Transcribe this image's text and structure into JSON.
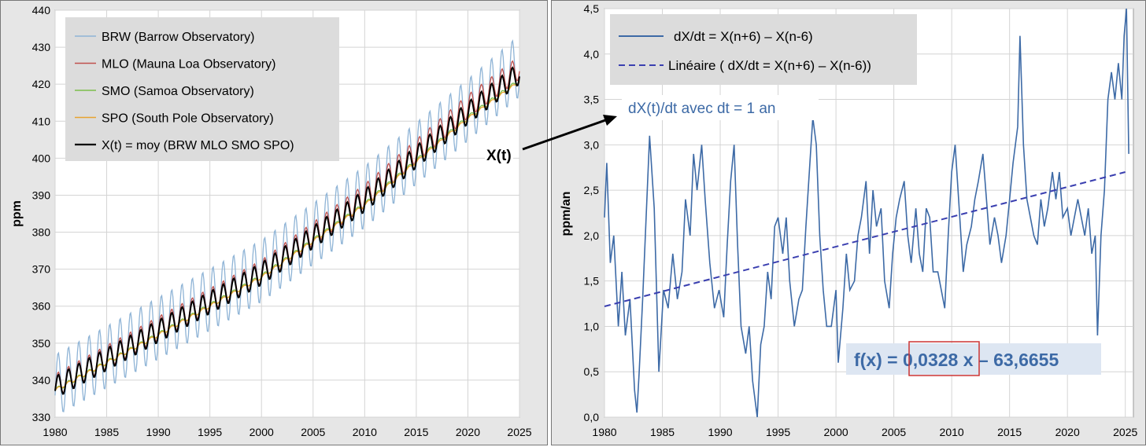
{
  "chart_data": [
    {
      "type": "line",
      "title": "",
      "xlabel": "",
      "ylabel": "ppm",
      "xlim": [
        1980,
        2025
      ],
      "ylim": [
        330,
        440
      ],
      "xticks": [
        "1980",
        "1985",
        "1990",
        "1995",
        "2000",
        "2005",
        "2010",
        "2015",
        "2020",
        "2025"
      ],
      "yticks": [
        "330",
        "340",
        "350",
        "360",
        "370",
        "380",
        "390",
        "400",
        "410",
        "420",
        "430",
        "440"
      ],
      "grid": true,
      "legend_position": "top-left",
      "series": [
        {
          "name": "BRW (Barrow Observatory)",
          "color": "#8fb4d6",
          "trend": [
            [
              1980,
              338.5
            ],
            [
              1990,
              354
            ],
            [
              2000,
              369.5
            ],
            [
              2010,
              389.5
            ],
            [
              2020,
              413
            ],
            [
              2025,
              425
            ]
          ],
          "seasonal_amplitude": 8.5
        },
        {
          "name": "MLO (Mauna Loa Observatory)",
          "color": "#c0504d",
          "trend": [
            [
              1980,
              338.5
            ],
            [
              1990,
              354
            ],
            [
              2000,
              369.3
            ],
            [
              2010,
              389.8
            ],
            [
              2020,
              414
            ],
            [
              2025,
              424.5
            ]
          ],
          "seasonal_amplitude": 3.2
        },
        {
          "name": "SMO (Samoa Observatory)",
          "color": "#7dbf4b",
          "trend": [
            [
              1980,
              337.3
            ],
            [
              1990,
              352.3
            ],
            [
              2000,
              368
            ],
            [
              2010,
              387.5
            ],
            [
              2020,
              411
            ],
            [
              2025,
              421
            ]
          ],
          "seasonal_amplitude": 0.6
        },
        {
          "name": "SPO (South Pole Observatory)",
          "color": "#e8a330",
          "trend": [
            [
              1980,
              337.3
            ],
            [
              1990,
              352.2
            ],
            [
              2000,
              367.8
            ],
            [
              2010,
              387.3
            ],
            [
              2020,
              410.7
            ],
            [
              2025,
              420.7
            ]
          ],
          "seasonal_amplitude": 0.4
        },
        {
          "name": "X(t) = moy (BRW MLO SMO SPO)",
          "color": "#000000",
          "trend": [
            [
              1980,
              338
            ],
            [
              1990,
              353.2
            ],
            [
              2000,
              368.7
            ],
            [
              2010,
              388.5
            ],
            [
              2020,
              412.2
            ],
            [
              2025,
              423
            ]
          ],
          "seasonal_amplitude": 3.0
        }
      ]
    },
    {
      "type": "line",
      "title": "",
      "xlabel": "",
      "ylabel": "ppm/an",
      "xlim": [
        1980,
        2025.7
      ],
      "ylim": [
        0.0,
        4.5
      ],
      "xticks": [
        "1980",
        "1985",
        "1990",
        "1995",
        "2000",
        "2005",
        "2010",
        "2015",
        "2020",
        "2025"
      ],
      "yticks": [
        "0,0",
        "0,5",
        "1,0",
        "1,5",
        "2,0",
        "2,5",
        "3,0",
        "3,5",
        "4,0",
        "4,5"
      ],
      "grid": true,
      "legend_position": "top-left",
      "series": [
        {
          "name": "dX/dt =  X(n+6) – X(n-6)",
          "color": "#3d6aa6",
          "style": "solid",
          "points": [
            [
              1980,
              2.2
            ],
            [
              1980.2,
              2.8
            ],
            [
              1980.5,
              1.7
            ],
            [
              1980.8,
              2.0
            ],
            [
              1981.2,
              1.0
            ],
            [
              1981.5,
              1.6
            ],
            [
              1981.8,
              0.9
            ],
            [
              1982.2,
              1.3
            ],
            [
              1982.6,
              0.3
            ],
            [
              1982.8,
              0.05
            ],
            [
              1983.0,
              0.5
            ],
            [
              1983.3,
              1.3
            ],
            [
              1983.6,
              2.2
            ],
            [
              1983.9,
              3.1
            ],
            [
              1984.3,
              2.3
            ],
            [
              1984.7,
              0.5
            ],
            [
              1985.1,
              1.4
            ],
            [
              1985.5,
              1.2
            ],
            [
              1985.9,
              1.8
            ],
            [
              1986.3,
              1.3
            ],
            [
              1986.7,
              1.6
            ],
            [
              1987.0,
              2.4
            ],
            [
              1987.4,
              2.0
            ],
            [
              1987.7,
              2.9
            ],
            [
              1988.0,
              2.5
            ],
            [
              1988.4,
              3.0
            ],
            [
              1988.7,
              2.4
            ],
            [
              1989.1,
              1.7
            ],
            [
              1989.5,
              1.2
            ],
            [
              1989.9,
              1.4
            ],
            [
              1990.3,
              1.1
            ],
            [
              1990.6,
              1.9
            ],
            [
              1990.9,
              2.6
            ],
            [
              1991.2,
              3.0
            ],
            [
              1991.5,
              1.9
            ],
            [
              1991.8,
              1.0
            ],
            [
              1992.2,
              0.7
            ],
            [
              1992.5,
              1.0
            ],
            [
              1992.8,
              0.4
            ],
            [
              1993.2,
              0.0
            ],
            [
              1993.5,
              0.8
            ],
            [
              1993.8,
              1.0
            ],
            [
              1994.1,
              1.6
            ],
            [
              1994.4,
              1.3
            ],
            [
              1994.7,
              2.1
            ],
            [
              1995.0,
              2.2
            ],
            [
              1995.4,
              1.8
            ],
            [
              1995.7,
              2.2
            ],
            [
              1996.0,
              1.5
            ],
            [
              1996.4,
              1.0
            ],
            [
              1996.8,
              1.3
            ],
            [
              1997.1,
              1.4
            ],
            [
              1997.4,
              2.1
            ],
            [
              1997.8,
              2.9
            ],
            [
              1998.0,
              3.3
            ],
            [
              1998.3,
              3.0
            ],
            [
              1998.6,
              2.0
            ],
            [
              1998.9,
              1.4
            ],
            [
              1999.2,
              1.0
            ],
            [
              1999.6,
              1.0
            ],
            [
              2000.0,
              1.4
            ],
            [
              2000.2,
              0.6
            ],
            [
              2000.6,
              1.2
            ],
            [
              2000.9,
              1.8
            ],
            [
              2001.2,
              1.4
            ],
            [
              2001.6,
              1.5
            ],
            [
              2001.9,
              2.0
            ],
            [
              2002.2,
              2.2
            ],
            [
              2002.6,
              2.6
            ],
            [
              2002.9,
              1.8
            ],
            [
              2003.2,
              2.5
            ],
            [
              2003.5,
              2.1
            ],
            [
              2003.9,
              2.3
            ],
            [
              2004.2,
              1.5
            ],
            [
              2004.6,
              1.2
            ],
            [
              2004.9,
              1.8
            ],
            [
              2005.2,
              2.2
            ],
            [
              2005.5,
              2.4
            ],
            [
              2005.9,
              2.6
            ],
            [
              2006.2,
              2.0
            ],
            [
              2006.5,
              1.7
            ],
            [
              2006.9,
              2.3
            ],
            [
              2007.2,
              1.8
            ],
            [
              2007.5,
              1.6
            ],
            [
              2007.8,
              2.3
            ],
            [
              2008.1,
              2.2
            ],
            [
              2008.4,
              1.6
            ],
            [
              2008.8,
              1.6
            ],
            [
              2009.1,
              1.4
            ],
            [
              2009.4,
              1.2
            ],
            [
              2009.7,
              2.0
            ],
            [
              2010.0,
              2.7
            ],
            [
              2010.3,
              3.0
            ],
            [
              2010.7,
              2.2
            ],
            [
              2011.0,
              1.6
            ],
            [
              2011.3,
              1.9
            ],
            [
              2011.7,
              2.1
            ],
            [
              2012.0,
              2.4
            ],
            [
              2012.3,
              2.6
            ],
            [
              2012.7,
              2.9
            ],
            [
              2013.0,
              2.4
            ],
            [
              2013.3,
              1.9
            ],
            [
              2013.7,
              2.2
            ],
            [
              2014.0,
              2.0
            ],
            [
              2014.3,
              1.7
            ],
            [
              2014.7,
              2.0
            ],
            [
              2015.0,
              2.4
            ],
            [
              2015.3,
              2.8
            ],
            [
              2015.7,
              3.2
            ],
            [
              2015.9,
              4.2
            ],
            [
              2016.2,
              3.0
            ],
            [
              2016.5,
              2.4
            ],
            [
              2016.8,
              2.2
            ],
            [
              2017.1,
              2.0
            ],
            [
              2017.4,
              1.9
            ],
            [
              2017.7,
              2.4
            ],
            [
              2018.0,
              2.1
            ],
            [
              2018.3,
              2.3
            ],
            [
              2018.7,
              2.7
            ],
            [
              2019.0,
              2.4
            ],
            [
              2019.3,
              2.7
            ],
            [
              2019.6,
              2.2
            ],
            [
              2020.0,
              2.3
            ],
            [
              2020.3,
              2.0
            ],
            [
              2020.6,
              2.2
            ],
            [
              2020.9,
              2.4
            ],
            [
              2021.2,
              2.2
            ],
            [
              2021.5,
              2.0
            ],
            [
              2021.8,
              2.3
            ],
            [
              2022.1,
              1.8
            ],
            [
              2022.4,
              2.0
            ],
            [
              2022.6,
              0.9
            ],
            [
              2022.9,
              2.0
            ],
            [
              2023.2,
              2.5
            ],
            [
              2023.5,
              3.5
            ],
            [
              2023.8,
              3.8
            ],
            [
              2024.1,
              3.5
            ],
            [
              2024.4,
              3.9
            ],
            [
              2024.7,
              3.5
            ],
            [
              2024.9,
              4.2
            ],
            [
              2025.1,
              4.5
            ],
            [
              2025.3,
              2.9
            ]
          ]
        },
        {
          "name": "Linéaire ( dX/dt =  X(n+6) – X(n-6))",
          "color": "#3a3fb0",
          "style": "dashed",
          "points": [
            [
              1980,
              1.22
            ],
            [
              2025,
              2.7
            ]
          ]
        }
      ]
    }
  ],
  "annotations": {
    "arrow_label": "X(t)",
    "right_note": "dX(t)/dt avec dt = 1 an",
    "equation_prefix": "f(x) = ",
    "equation_slope": "0,0328",
    "equation_suffix": " x – 63,6655"
  },
  "colors": {
    "panel_bg": "#e6e6e6",
    "plot_bg": "#ffffff",
    "grid": "#d4d4d4",
    "legend_bg": "#dcdcdc",
    "annotation_text": "#3d6aa6",
    "equation_bg": "#dde6f2",
    "highlight_box": "#cc3333"
  }
}
